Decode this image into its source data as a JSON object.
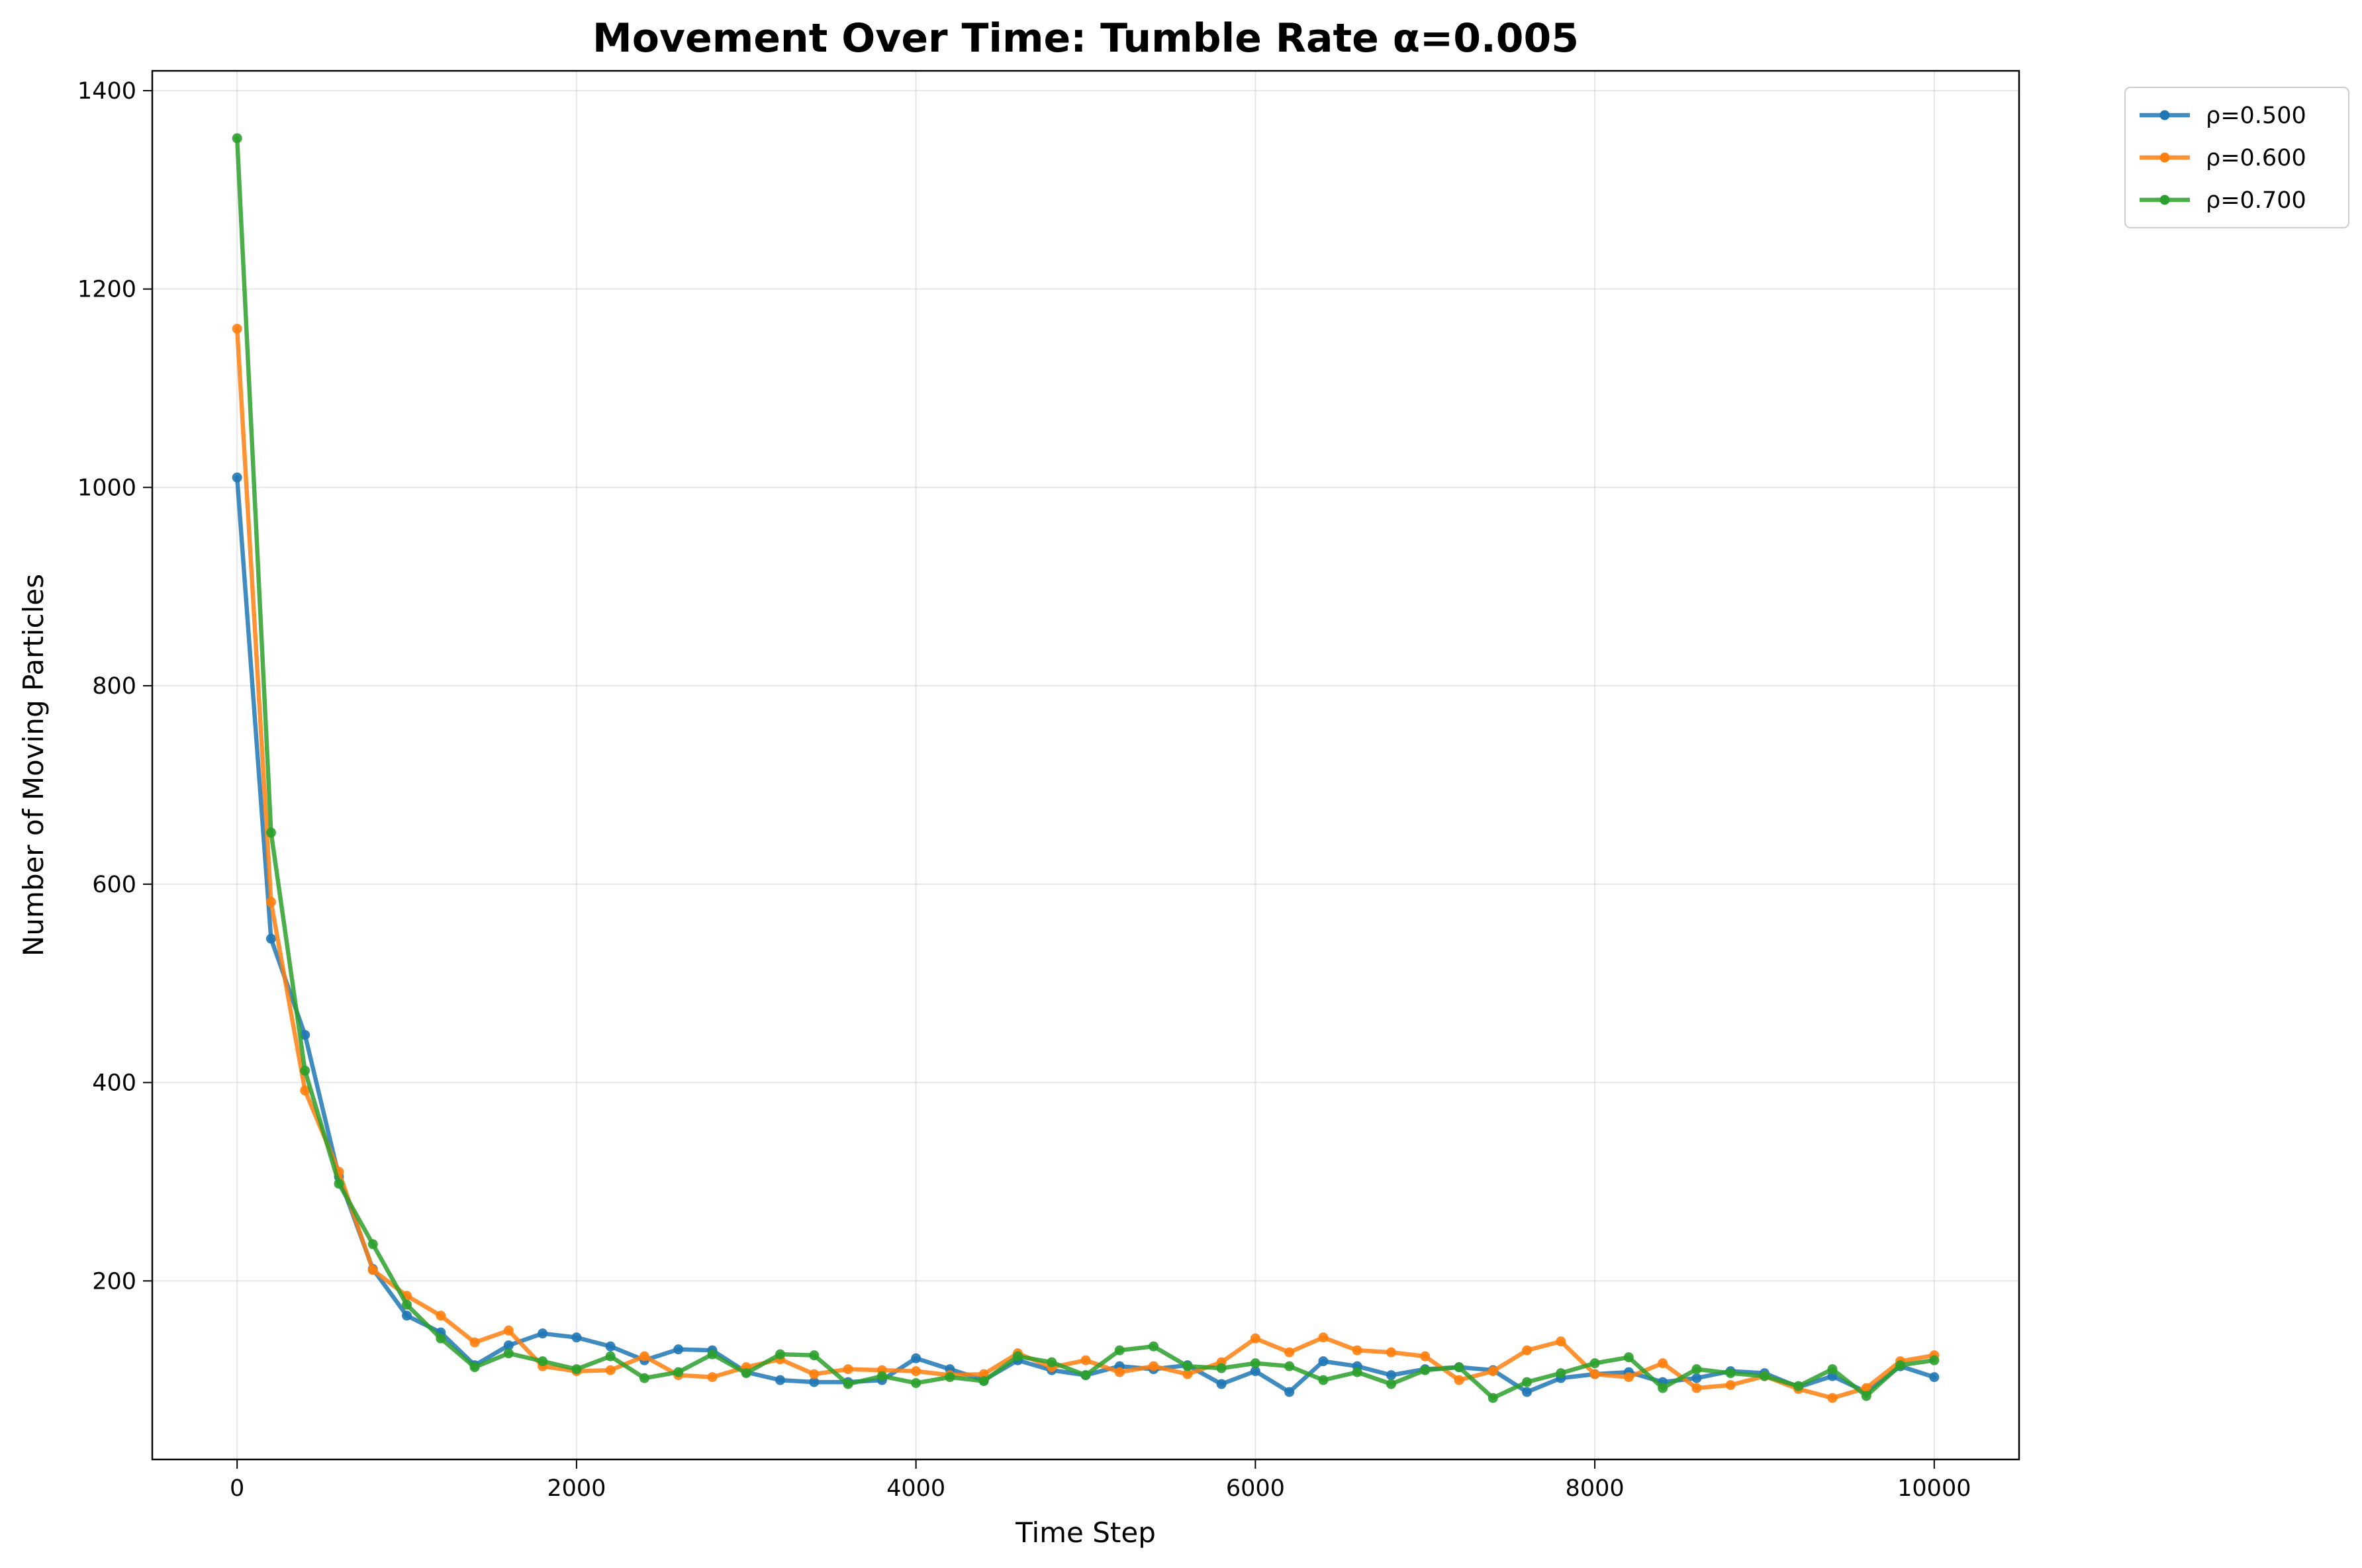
{
  "chart_data": {
    "type": "line",
    "title": "Movement Over Time: Tumble Rate α=0.005",
    "xlabel": "Time Step",
    "ylabel": "Number of Moving Particles",
    "xlim": [
      -500,
      10500
    ],
    "ylim": [
      20,
      1420
    ],
    "xticks": [
      0,
      2000,
      4000,
      6000,
      8000,
      10000
    ],
    "xtick_labels": [
      "0",
      "2000",
      "4000",
      "6000",
      "8000",
      "10000"
    ],
    "yticks": [
      200,
      400,
      600,
      800,
      1000,
      1200,
      1400
    ],
    "ytick_labels": [
      "200",
      "400",
      "600",
      "800",
      "1000",
      "1200",
      "1400"
    ],
    "grid": true,
    "legend_position": "outside-top-right",
    "x": [
      0,
      200,
      400,
      600,
      800,
      1000,
      1200,
      1400,
      1600,
      1800,
      2000,
      2200,
      2400,
      2600,
      2800,
      3000,
      3200,
      3400,
      3600,
      3800,
      4000,
      4200,
      4400,
      4600,
      4800,
      5000,
      5200,
      5400,
      5600,
      5800,
      6000,
      6200,
      6400,
      6600,
      6800,
      7000,
      7200,
      7400,
      7600,
      7800,
      8000,
      8200,
      8400,
      8600,
      8800,
      9000,
      9200,
      9400,
      9600,
      9800,
      10000
    ],
    "series": [
      {
        "name": "ρ=0.500",
        "color": "#1f77b4",
        "values": [
          1010,
          545,
          448,
          305,
          212,
          165,
          148,
          115,
          135,
          147,
          143,
          134,
          120,
          131,
          130,
          108,
          100,
          98,
          98,
          100,
          122,
          111,
          100,
          120,
          110,
          105,
          114,
          111,
          115,
          96,
          109,
          88,
          119,
          114,
          105,
          111,
          113,
          110,
          88,
          102,
          106,
          108,
          98,
          102,
          109,
          107,
          93,
          104,
          88,
          114,
          103
        ]
      },
      {
        "name": "ρ=0.600",
        "color": "#ff7f0e",
        "values": [
          1160,
          582,
          392,
          310,
          211,
          185,
          165,
          138,
          150,
          114,
          109,
          110,
          124,
          105,
          103,
          113,
          121,
          106,
          111,
          110,
          109,
          105,
          106,
          127,
          113,
          120,
          108,
          114,
          106,
          118,
          142,
          128,
          143,
          130,
          128,
          124,
          100,
          109,
          130,
          139,
          106,
          103,
          117,
          92,
          95,
          104,
          91,
          82,
          92,
          119,
          125
        ]
      },
      {
        "name": "ρ=0.700",
        "color": "#2ca02c",
        "values": [
          1352,
          652,
          412,
          298,
          237,
          176,
          142,
          113,
          127,
          119,
          111,
          124,
          102,
          108,
          126,
          107,
          126,
          125,
          96,
          104,
          97,
          103,
          99,
          124,
          118,
          105,
          130,
          134,
          114,
          112,
          117,
          114,
          100,
          108,
          96,
          110,
          113,
          82,
          98,
          107,
          117,
          123,
          92,
          111,
          107,
          104,
          94,
          111,
          84,
          115,
          120
        ]
      }
    ]
  }
}
